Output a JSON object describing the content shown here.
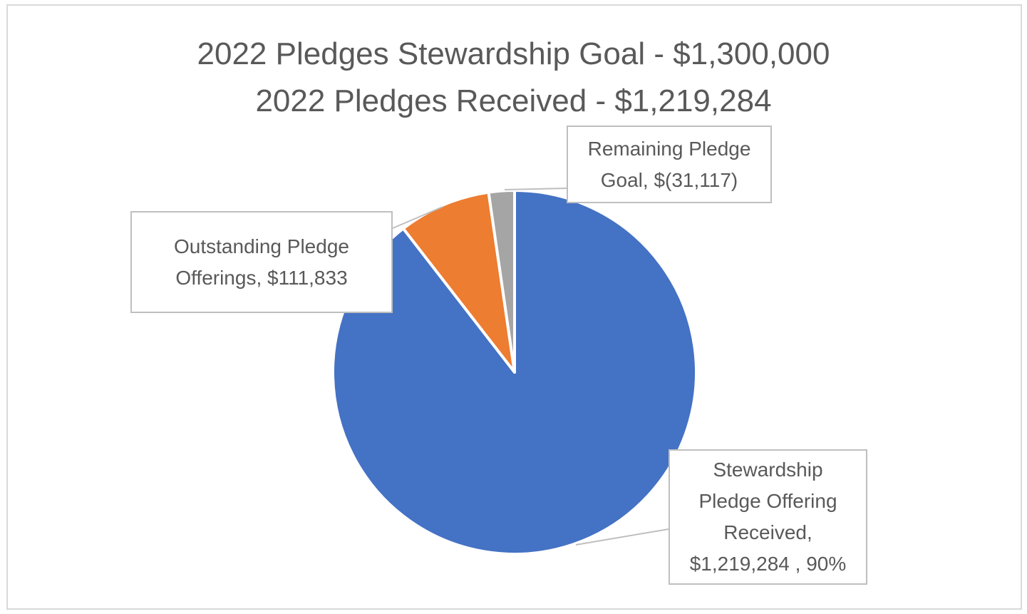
{
  "chart_data": {
    "type": "pie",
    "title": [
      "2022 Pledges Stewardship Goal - $1,300,000",
      "2022 Pledges Received - $1,219,284"
    ],
    "slices": [
      {
        "name": "Stewardship Pledge Offering Received",
        "value": 1219284,
        "label_lines": [
          "Stewardship",
          "Pledge Offering",
          "Received,",
          "$1,219,284 , 90%"
        ],
        "color": "#4472C4"
      },
      {
        "name": "Outstanding Pledge Offerings",
        "value": 111833,
        "label_lines": [
          "Outstanding Pledge",
          "Offerings,  $111,833"
        ],
        "color": "#ED7D31"
      },
      {
        "name": "Remaining Pledge Goal",
        "value": 31117,
        "label_lines": [
          "Remaining Pledge",
          "Goal,  $(31,117)"
        ],
        "color": "#A5A5A5"
      }
    ],
    "start_angle": "12 o'clock",
    "direction": "clockwise",
    "legend": "none"
  }
}
